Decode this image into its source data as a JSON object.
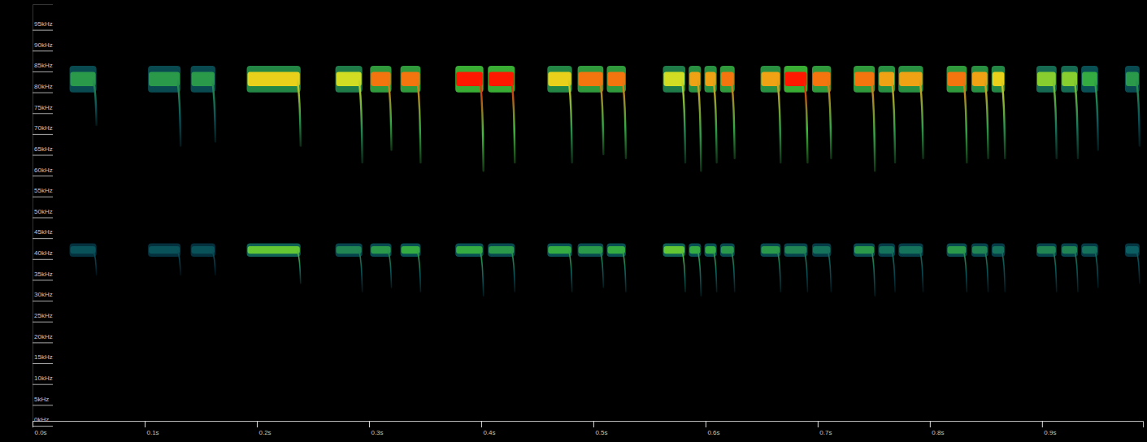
{
  "chart_data": {
    "type": "spectrogram",
    "xlim": [
      0,
      0.99
    ],
    "ylim": [
      0,
      100
    ],
    "xticks": [
      {
        "value": 0,
        "label": "0.0s"
      },
      {
        "value": 0.1,
        "label": "0.1s"
      },
      {
        "value": 0.2,
        "label": "0.2s"
      },
      {
        "value": 0.3,
        "label": "0.3s"
      },
      {
        "value": 0.4,
        "label": "0.4s"
      },
      {
        "value": 0.5,
        "label": "0.5s"
      },
      {
        "value": 0.6,
        "label": "0.6s"
      },
      {
        "value": 0.7,
        "label": "0.7s"
      },
      {
        "value": 0.8,
        "label": "0.8s"
      },
      {
        "value": 0.9,
        "label": "0.9s"
      }
    ],
    "yticks": [
      {
        "value": 0,
        "label": "0kHz"
      },
      {
        "value": 5,
        "label": "5kHz"
      },
      {
        "value": 10,
        "label": "10kHz"
      },
      {
        "value": 15,
        "label": "15kHz"
      },
      {
        "value": 20,
        "label": "20kHz"
      },
      {
        "value": 25,
        "label": "25kHz"
      },
      {
        "value": 30,
        "label": "30kHz"
      },
      {
        "value": 35,
        "label": "35kHz"
      },
      {
        "value": 40,
        "label": "40kHz"
      },
      {
        "value": 45,
        "label": "45kHz"
      },
      {
        "value": 50,
        "label": "50kHz"
      },
      {
        "value": 55,
        "label": "55kHz"
      },
      {
        "value": 60,
        "label": "60kHz"
      },
      {
        "value": 65,
        "label": "65kHz"
      },
      {
        "value": 70,
        "label": "70kHz"
      },
      {
        "value": 75,
        "label": "75kHz"
      },
      {
        "value": 80,
        "label": "80kHz"
      },
      {
        "value": 85,
        "label": "85kHz"
      },
      {
        "value": 90,
        "label": "90kHz"
      },
      {
        "value": 95,
        "label": "95kHz"
      }
    ],
    "level_range": [
      0,
      1
    ],
    "calls": [
      {
        "start": 0.033,
        "end": 0.057,
        "freq": 82,
        "low": 71,
        "level": 0.45
      },
      {
        "start": 0.103,
        "end": 0.132,
        "freq": 82,
        "low": 66,
        "level": 0.45
      },
      {
        "start": 0.141,
        "end": 0.163,
        "freq": 82,
        "low": 67,
        "level": 0.45
      },
      {
        "start": 0.191,
        "end": 0.239,
        "freq": 82,
        "low": 66,
        "level": 0.8
      },
      {
        "start": 0.27,
        "end": 0.294,
        "freq": 82,
        "low": 62,
        "level": 0.75
      },
      {
        "start": 0.301,
        "end": 0.32,
        "freq": 82,
        "low": 65,
        "level": 0.9
      },
      {
        "start": 0.328,
        "end": 0.346,
        "freq": 82,
        "low": 62,
        "level": 0.9
      },
      {
        "start": 0.377,
        "end": 0.402,
        "freq": 82,
        "low": 60,
        "level": 1
      },
      {
        "start": 0.406,
        "end": 0.43,
        "freq": 82,
        "low": 62,
        "level": 1
      },
      {
        "start": 0.459,
        "end": 0.481,
        "freq": 82,
        "low": 62,
        "level": 0.8
      },
      {
        "start": 0.486,
        "end": 0.509,
        "freq": 82,
        "low": 64,
        "level": 0.9
      },
      {
        "start": 0.512,
        "end": 0.529,
        "freq": 82,
        "low": 63,
        "level": 0.9
      },
      {
        "start": 0.562,
        "end": 0.582,
        "freq": 82,
        "low": 62,
        "level": 0.75
      },
      {
        "start": 0.585,
        "end": 0.596,
        "freq": 82,
        "low": 60,
        "level": 0.85
      },
      {
        "start": 0.599,
        "end": 0.61,
        "freq": 82,
        "low": 62,
        "level": 0.85
      },
      {
        "start": 0.613,
        "end": 0.626,
        "freq": 82,
        "low": 63,
        "level": 0.9
      },
      {
        "start": 0.649,
        "end": 0.667,
        "freq": 82,
        "low": 62,
        "level": 0.85
      },
      {
        "start": 0.67,
        "end": 0.691,
        "freq": 82,
        "low": 62,
        "level": 1
      },
      {
        "start": 0.695,
        "end": 0.712,
        "freq": 82,
        "low": 63,
        "level": 0.9
      },
      {
        "start": 0.732,
        "end": 0.751,
        "freq": 82,
        "low": 60,
        "level": 0.9
      },
      {
        "start": 0.754,
        "end": 0.769,
        "freq": 82,
        "low": 62,
        "level": 0.85
      },
      {
        "start": 0.772,
        "end": 0.794,
        "freq": 82,
        "low": 63,
        "level": 0.85
      },
      {
        "start": 0.815,
        "end": 0.833,
        "freq": 82,
        "low": 62,
        "level": 0.9
      },
      {
        "start": 0.837,
        "end": 0.852,
        "freq": 82,
        "low": 63,
        "level": 0.85
      },
      {
        "start": 0.855,
        "end": 0.867,
        "freq": 82,
        "low": 63,
        "level": 0.8
      },
      {
        "start": 0.895,
        "end": 0.913,
        "freq": 82,
        "low": 63,
        "level": 0.65
      },
      {
        "start": 0.917,
        "end": 0.932,
        "freq": 82,
        "low": 63,
        "level": 0.65
      },
      {
        "start": 0.935,
        "end": 0.95,
        "freq": 82,
        "low": 65,
        "level": 0.5
      },
      {
        "start": 0.974,
        "end": 0.987,
        "freq": 82,
        "low": 66,
        "level": 0.45
      }
    ],
    "harmonic_calls": [
      {
        "start": 0.033,
        "end": 0.057,
        "freq": 41,
        "low": 35,
        "level": 0.25
      },
      {
        "start": 0.103,
        "end": 0.132,
        "freq": 41,
        "low": 35,
        "level": 0.25
      },
      {
        "start": 0.141,
        "end": 0.163,
        "freq": 41,
        "low": 35,
        "level": 0.25
      },
      {
        "start": 0.191,
        "end": 0.239,
        "freq": 41,
        "low": 33,
        "level": 0.6
      },
      {
        "start": 0.27,
        "end": 0.294,
        "freq": 41,
        "low": 31,
        "level": 0.4
      },
      {
        "start": 0.301,
        "end": 0.32,
        "freq": 41,
        "low": 32,
        "level": 0.45
      },
      {
        "start": 0.328,
        "end": 0.346,
        "freq": 41,
        "low": 31,
        "level": 0.5
      },
      {
        "start": 0.377,
        "end": 0.402,
        "freq": 41,
        "low": 30,
        "level": 0.5
      },
      {
        "start": 0.406,
        "end": 0.43,
        "freq": 41,
        "low": 31,
        "level": 0.45
      },
      {
        "start": 0.459,
        "end": 0.481,
        "freq": 41,
        "low": 31,
        "level": 0.5
      },
      {
        "start": 0.486,
        "end": 0.509,
        "freq": 41,
        "low": 32,
        "level": 0.45
      },
      {
        "start": 0.512,
        "end": 0.529,
        "freq": 41,
        "low": 31,
        "level": 0.5
      },
      {
        "start": 0.562,
        "end": 0.582,
        "freq": 41,
        "low": 31,
        "level": 0.6
      },
      {
        "start": 0.585,
        "end": 0.596,
        "freq": 41,
        "low": 30,
        "level": 0.5
      },
      {
        "start": 0.599,
        "end": 0.61,
        "freq": 41,
        "low": 31,
        "level": 0.5
      },
      {
        "start": 0.613,
        "end": 0.626,
        "freq": 41,
        "low": 31,
        "level": 0.45
      },
      {
        "start": 0.649,
        "end": 0.667,
        "freq": 41,
        "low": 31,
        "level": 0.45
      },
      {
        "start": 0.67,
        "end": 0.691,
        "freq": 41,
        "low": 31,
        "level": 0.4
      },
      {
        "start": 0.695,
        "end": 0.712,
        "freq": 41,
        "low": 31,
        "level": 0.35
      },
      {
        "start": 0.732,
        "end": 0.751,
        "freq": 41,
        "low": 30,
        "level": 0.45
      },
      {
        "start": 0.754,
        "end": 0.769,
        "freq": 41,
        "low": 31,
        "level": 0.35
      },
      {
        "start": 0.772,
        "end": 0.794,
        "freq": 41,
        "low": 31,
        "level": 0.35
      },
      {
        "start": 0.815,
        "end": 0.833,
        "freq": 41,
        "low": 31,
        "level": 0.45
      },
      {
        "start": 0.837,
        "end": 0.852,
        "freq": 41,
        "low": 31,
        "level": 0.4
      },
      {
        "start": 0.855,
        "end": 0.867,
        "freq": 41,
        "low": 31,
        "level": 0.35
      },
      {
        "start": 0.895,
        "end": 0.913,
        "freq": 41,
        "low": 31,
        "level": 0.4
      },
      {
        "start": 0.917,
        "end": 0.932,
        "freq": 41,
        "low": 31,
        "level": 0.4
      },
      {
        "start": 0.935,
        "end": 0.95,
        "freq": 41,
        "low": 32,
        "level": 0.35
      },
      {
        "start": 0.974,
        "end": 0.987,
        "freq": 41,
        "low": 33,
        "level": 0.3
      }
    ]
  }
}
